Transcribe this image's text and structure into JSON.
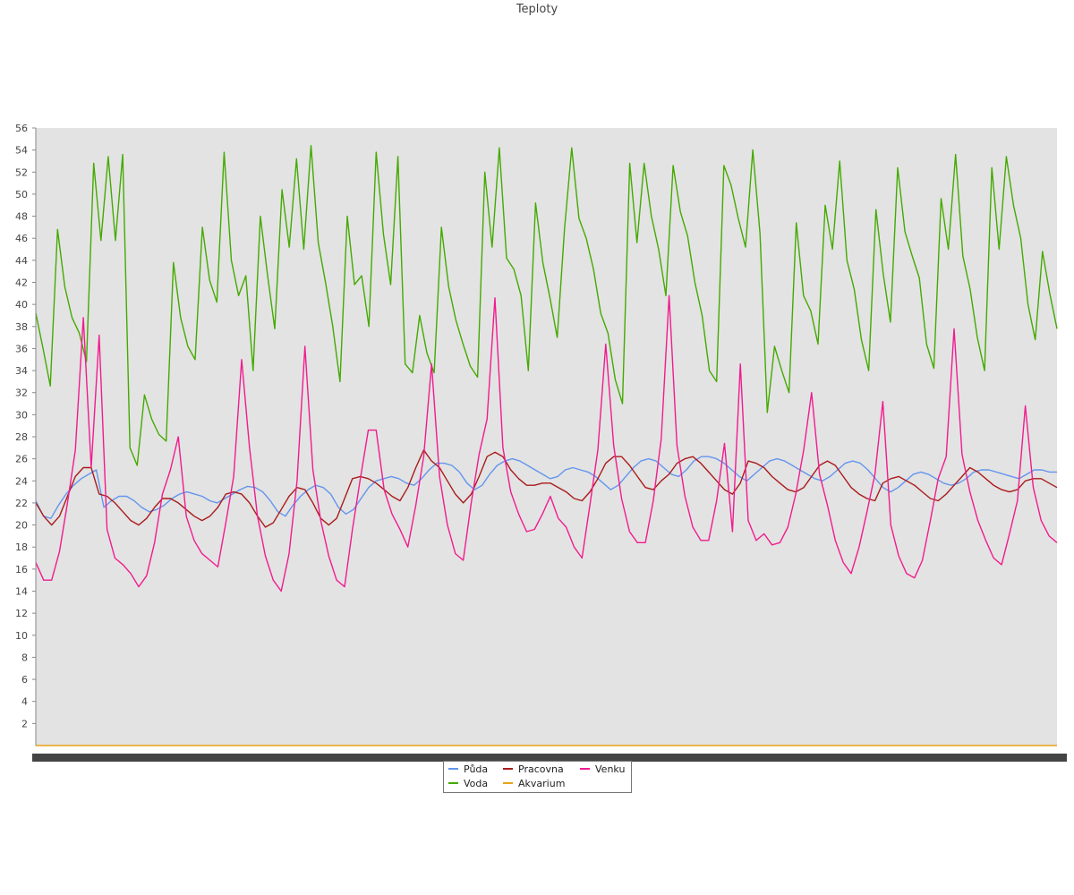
{
  "chart_data": {
    "type": "line",
    "title": "Teploty",
    "xlabel": "",
    "ylabel": "",
    "ylim": [
      0,
      56
    ],
    "yticks": [
      2,
      4,
      6,
      8,
      10,
      12,
      14,
      16,
      18,
      20,
      22,
      24,
      26,
      28,
      30,
      32,
      34,
      36,
      38,
      40,
      42,
      44,
      46,
      48,
      50,
      52,
      54,
      56
    ],
    "grid": false,
    "legend_position": "bottom-center",
    "series": [
      {
        "name": "Půda",
        "color": "#6495ed",
        "values": [
          22.2,
          20.8,
          20.6,
          21.8,
          22.8,
          23.6,
          24.2,
          24.6,
          25.0,
          21.6,
          22.2,
          22.6,
          22.6,
          22.2,
          21.6,
          21.2,
          21.4,
          21.8,
          22.4,
          22.8,
          23.0,
          22.8,
          22.6,
          22.2,
          22.0,
          22.4,
          22.8,
          23.2,
          23.5,
          23.4,
          23.0,
          22.2,
          21.2,
          20.8,
          21.8,
          22.6,
          23.2,
          23.6,
          23.4,
          22.8,
          21.6,
          21.0,
          21.4,
          22.4,
          23.4,
          24.0,
          24.2,
          24.4,
          24.2,
          23.8,
          23.6,
          24.2,
          25.0,
          25.6,
          25.6,
          25.4,
          24.8,
          23.8,
          23.2,
          23.6,
          24.6,
          25.4,
          25.8,
          26.0,
          25.8,
          25.4,
          25.0,
          24.6,
          24.2,
          24.4,
          25.0,
          25.2,
          25.0,
          24.8,
          24.4,
          23.8,
          23.2,
          23.6,
          24.4,
          25.2,
          25.8,
          26.0,
          25.8,
          25.2,
          24.6,
          24.4,
          25.0,
          25.8,
          26.2,
          26.2,
          26.0,
          25.6,
          25.0,
          24.4,
          24.0,
          24.6,
          25.2,
          25.8,
          26.0,
          25.8,
          25.4,
          25.0,
          24.6,
          24.2,
          24.0,
          24.4,
          25.0,
          25.6,
          25.8,
          25.6,
          25.0,
          24.2,
          23.4,
          23.0,
          23.4,
          24.0,
          24.6,
          24.8,
          24.6,
          24.2,
          23.8,
          23.6,
          23.8,
          24.2,
          24.8,
          25.0,
          25.0,
          24.8,
          24.6,
          24.4,
          24.2,
          24.6,
          25.0,
          25.0,
          24.8,
          24.8
        ]
      },
      {
        "name": "Voda",
        "color": "#44aa00",
        "values": [
          39.2,
          36.0,
          32.6,
          46.8,
          41.6,
          38.8,
          37.4,
          34.8,
          52.8,
          45.8,
          53.4,
          45.8,
          53.6,
          27.0,
          25.4,
          31.8,
          29.6,
          28.2,
          27.6,
          43.8,
          38.8,
          36.2,
          35.0,
          47.0,
          42.2,
          40.2,
          53.8,
          44.0,
          40.8,
          42.6,
          34.0,
          48.0,
          42.6,
          37.8,
          50.4,
          45.2,
          53.2,
          45.0,
          54.4,
          45.6,
          42.0,
          38.0,
          33.0,
          48.0,
          41.8,
          42.6,
          38.0,
          53.8,
          46.4,
          41.8,
          53.4,
          34.6,
          33.8,
          39.0,
          35.6,
          33.8,
          47.0,
          41.6,
          38.6,
          36.4,
          34.4,
          33.4,
          52.0,
          45.2,
          54.2,
          44.2,
          43.2,
          40.8,
          34.0,
          49.2,
          43.8,
          40.6,
          37.0,
          46.8,
          54.2,
          47.8,
          46.0,
          43.2,
          39.2,
          37.4,
          33.2,
          31.0,
          52.8,
          45.6,
          52.8,
          48.0,
          45.0,
          40.8,
          52.6,
          48.4,
          46.2,
          42.0,
          39.0,
          34.0,
          33.0,
          52.6,
          50.8,
          47.8,
          45.2,
          54.0,
          46.4,
          30.2,
          36.2,
          34.0,
          32.0,
          47.4,
          40.8,
          39.4,
          36.4,
          49.0,
          45.0,
          53.0,
          44.0,
          41.4,
          36.8,
          34.0,
          48.6,
          42.8,
          38.4,
          52.4,
          46.6,
          44.4,
          42.4,
          36.4,
          34.2,
          49.6,
          45.0,
          53.6,
          44.4,
          41.4,
          37.0,
          34.0,
          52.4,
          45.0,
          53.4,
          49.0,
          46.0,
          40.0,
          36.8,
          44.8,
          41.0,
          37.8
        ]
      },
      {
        "name": "Pracovna",
        "color": "#aa1b1b",
        "values": [
          22.0,
          20.8,
          20.0,
          20.8,
          22.6,
          24.4,
          25.2,
          25.2,
          22.8,
          22.6,
          22.0,
          21.2,
          20.4,
          20.0,
          20.6,
          21.6,
          22.4,
          22.4,
          22.0,
          21.4,
          20.8,
          20.4,
          20.8,
          21.6,
          22.8,
          23.0,
          22.8,
          22.0,
          20.8,
          19.8,
          20.2,
          21.4,
          22.6,
          23.4,
          23.2,
          22.0,
          20.6,
          20.0,
          20.6,
          22.4,
          24.2,
          24.4,
          24.2,
          23.8,
          23.2,
          22.6,
          22.2,
          23.4,
          25.2,
          26.8,
          25.8,
          25.2,
          24.0,
          22.8,
          22.0,
          22.8,
          24.4,
          26.2,
          26.6,
          26.2,
          25.0,
          24.2,
          23.6,
          23.6,
          23.8,
          23.8,
          23.4,
          23.0,
          22.4,
          22.2,
          23.0,
          24.2,
          25.6,
          26.2,
          26.2,
          25.4,
          24.4,
          23.4,
          23.2,
          24.0,
          24.6,
          25.6,
          26.0,
          26.2,
          25.6,
          24.8,
          24.0,
          23.2,
          22.8,
          23.8,
          25.8,
          25.6,
          25.2,
          24.4,
          23.8,
          23.2,
          23.0,
          23.4,
          24.4,
          25.4,
          25.8,
          25.4,
          24.4,
          23.4,
          22.8,
          22.4,
          22.2,
          23.8,
          24.2,
          24.4,
          24.0,
          23.6,
          23.0,
          22.4,
          22.2,
          22.8,
          23.6,
          24.4,
          25.2,
          24.8,
          24.2,
          23.6,
          23.2,
          23.0,
          23.2,
          24.0,
          24.2,
          24.2,
          23.8,
          23.4
        ]
      },
      {
        "name": "Akvarium",
        "color": "#e8a317",
        "values": [
          0,
          0,
          0,
          0,
          0,
          0,
          0,
          0,
          0,
          0,
          0,
          0,
          0,
          0,
          0,
          0,
          0,
          0,
          0,
          0,
          0,
          0,
          0,
          0,
          0,
          0,
          0,
          0,
          0,
          0,
          0,
          0,
          0,
          0,
          0,
          0,
          0,
          0,
          0,
          0,
          0,
          0,
          0,
          0,
          0,
          0,
          0,
          0,
          0,
          0,
          0,
          0,
          0,
          0,
          0,
          0,
          0,
          0,
          0,
          0,
          0,
          0,
          0,
          0,
          0,
          0,
          0,
          0,
          0,
          0,
          0,
          0,
          0,
          0,
          0,
          0,
          0,
          0,
          0,
          0,
          0,
          0,
          0,
          0,
          0,
          0,
          0,
          0,
          0,
          0,
          0,
          0,
          0,
          0,
          0,
          0,
          0,
          0,
          0,
          0,
          0,
          0,
          0,
          0,
          0,
          0,
          0,
          0,
          0,
          0,
          0,
          0,
          0,
          0,
          0,
          0,
          0,
          0,
          0,
          0,
          0,
          0,
          0,
          0,
          0,
          0,
          0,
          0,
          0,
          0,
          0,
          0,
          0,
          0,
          0,
          0,
          0,
          0,
          0,
          0
        ]
      },
      {
        "name": "Venku",
        "color": "#f21b8f",
        "values": [
          16.6,
          15.0,
          15.0,
          17.6,
          22.0,
          26.8,
          38.8,
          25.2,
          37.2,
          19.6,
          17.0,
          16.4,
          15.6,
          14.4,
          15.4,
          18.4,
          22.8,
          25.0,
          28.0,
          20.8,
          18.6,
          17.4,
          16.8,
          16.2,
          20.2,
          24.4,
          35.0,
          27.0,
          20.8,
          17.2,
          15.0,
          14.0,
          17.4,
          24.0,
          36.2,
          25.0,
          20.4,
          17.2,
          15.0,
          14.4,
          19.6,
          24.2,
          28.6,
          28.6,
          23.2,
          21.0,
          19.6,
          18.0,
          21.8,
          26.2,
          34.6,
          24.4,
          20.0,
          17.4,
          16.8,
          22.0,
          26.4,
          29.6,
          40.6,
          27.0,
          23.0,
          21.0,
          19.4,
          19.6,
          21.0,
          22.6,
          20.6,
          19.8,
          18.0,
          17.0,
          21.8,
          26.8,
          36.4,
          27.2,
          22.4,
          19.4,
          18.4,
          18.4,
          22.2,
          27.8,
          40.8,
          27.2,
          22.6,
          19.8,
          18.6,
          18.6,
          22.2,
          27.4,
          19.4,
          34.6,
          20.4,
          18.6,
          19.2,
          18.2,
          18.4,
          19.8,
          22.8,
          26.8,
          32.0,
          24.6,
          21.8,
          18.6,
          16.6,
          15.6,
          18.0,
          21.2,
          24.6,
          31.2,
          20.0,
          17.2,
          15.6,
          15.2,
          16.8,
          20.4,
          24.2,
          26.2,
          37.8,
          26.4,
          23.0,
          20.4,
          18.6,
          17.0,
          16.4,
          19.2,
          22.2,
          30.8,
          23.4,
          20.4,
          19.0,
          18.4
        ]
      }
    ]
  }
}
